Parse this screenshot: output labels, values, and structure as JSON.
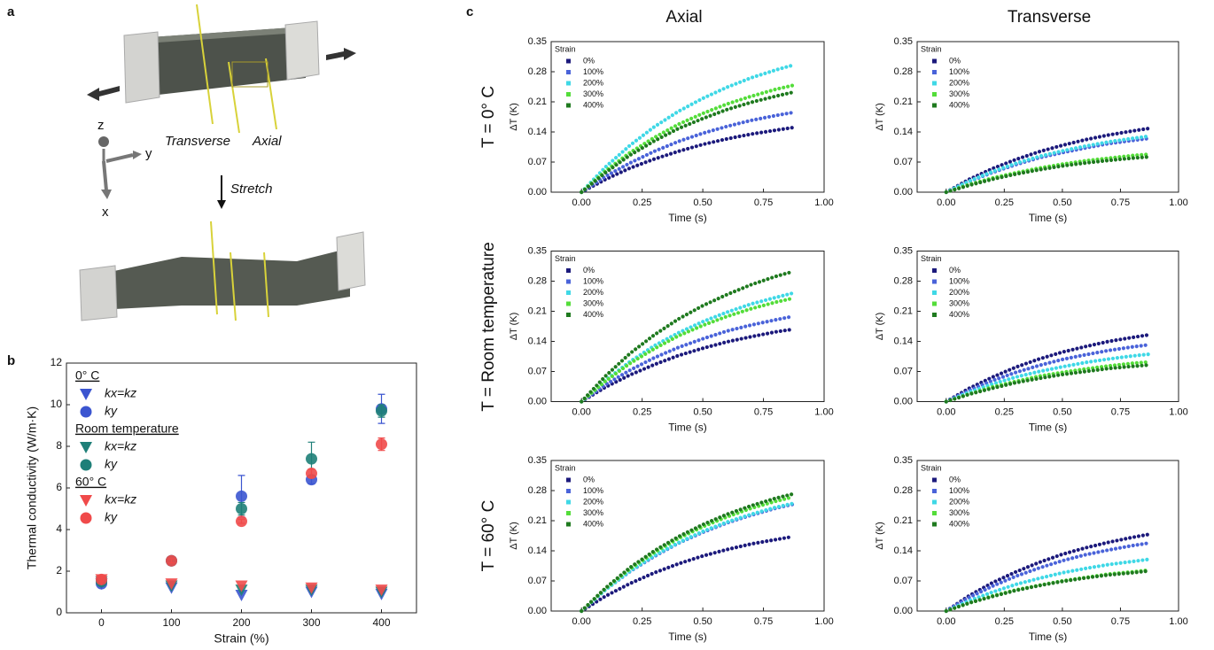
{
  "panel_labels": [
    "a",
    "b",
    "c"
  ],
  "panel_a": {
    "axes": [
      "z",
      "y",
      "x"
    ],
    "directions": [
      "Transverse",
      "Axial"
    ],
    "stretch": "Stretch"
  },
  "column_titles": [
    "Axial",
    "Transverse"
  ],
  "row_titles": [
    "T = 0° C",
    "T = Room temperature",
    "T = 60° C"
  ],
  "chart_data": [
    {
      "type": "scatter",
      "x_label": "Strain (%)",
      "y_label": "Thermal conductivity (W/m·K)",
      "x": [
        0,
        100,
        200,
        300,
        400
      ],
      "xlim": [
        -50,
        450
      ],
      "xticks": [
        0,
        100,
        200,
        300,
        400
      ],
      "ylim": [
        0,
        12
      ],
      "yticks": [
        0,
        2,
        4,
        6,
        8,
        10,
        12
      ],
      "groups": [
        {
          "name": "0° C",
          "color": "#3b55d0",
          "series": [
            {
              "name": "kx=kz",
              "marker": "triangle",
              "values": [
                1.4,
                1.2,
                0.85,
                1.0,
                0.9
              ]
            },
            {
              "name": "ky",
              "marker": "circle",
              "values": [
                1.4,
                2.5,
                5.6,
                6.4,
                9.8
              ],
              "errors": [
                0.1,
                0.1,
                1.0,
                0.2,
                0.7
              ]
            }
          ]
        },
        {
          "name": "Room temperature",
          "color": "#1e7f78",
          "series": [
            {
              "name": "kx=kz",
              "marker": "triangle",
              "values": [
                1.5,
                1.3,
                1.1,
                1.1,
                1.0
              ]
            },
            {
              "name": "ky",
              "marker": "circle",
              "values": [
                1.5,
                2.5,
                5.0,
                7.4,
                9.7
              ],
              "errors": [
                0.1,
                0.1,
                0.3,
                0.8,
                0.3
              ]
            }
          ]
        },
        {
          "name": "60° C",
          "color": "#f04a4a",
          "series": [
            {
              "name": "kx=kz",
              "marker": "triangle",
              "values": [
                1.6,
                1.4,
                1.3,
                1.2,
                1.1
              ]
            },
            {
              "name": "ky",
              "marker": "circle",
              "values": [
                1.6,
                2.5,
                4.4,
                6.7,
                8.1
              ],
              "errors": [
                0.1,
                0.1,
                0.1,
                0.2,
                0.3
              ]
            }
          ]
        }
      ]
    },
    {
      "type": "line",
      "x_label": "Time (s)",
      "y_label": "ΔT (K)",
      "legend_title": "Strain",
      "x": [
        0,
        0.1,
        0.2,
        0.3,
        0.4,
        0.5,
        0.6,
        0.7,
        0.8,
        0.87
      ],
      "xlim": [
        -0.125,
        1.0
      ],
      "xticks": [
        {
          "value": 0,
          "label": "0.00"
        },
        {
          "value": 0.25,
          "label": "0.25"
        },
        {
          "value": 0.5,
          "label": "0.50"
        },
        {
          "value": 0.75,
          "label": "0.75"
        },
        {
          "value": 1,
          "label": "1.00"
        }
      ],
      "ylim": [
        0,
        0.35
      ],
      "yticks": [
        {
          "value": 0,
          "label": "0.00"
        },
        {
          "value": 0.07,
          "label": "0.07"
        },
        {
          "value": 0.14,
          "label": "0.14"
        },
        {
          "value": 0.21,
          "label": "0.21"
        },
        {
          "value": 0.28,
          "label": "0.28"
        },
        {
          "value": 0.35,
          "label": "0.35"
        }
      ],
      "series": [
        {
          "name": "0%",
          "color": "#1c1a7c",
          "values": [
            0,
            0.03,
            0.056,
            0.077,
            0.095,
            0.111,
            0.124,
            0.135,
            0.144,
            0.15
          ]
        },
        {
          "name": "100%",
          "color": "#4a63d9",
          "values": [
            0,
            0.037,
            0.068,
            0.095,
            0.118,
            0.137,
            0.153,
            0.167,
            0.178,
            0.185
          ]
        },
        {
          "name": "200%",
          "color": "#3fd8e6",
          "values": [
            0,
            0.059,
            0.109,
            0.152,
            0.188,
            0.218,
            0.244,
            0.266,
            0.284,
            0.295
          ]
        },
        {
          "name": "300%",
          "color": "#54dd3a",
          "values": [
            0,
            0.05,
            0.092,
            0.127,
            0.158,
            0.183,
            0.205,
            0.223,
            0.239,
            0.248
          ]
        },
        {
          "name": "400%",
          "color": "#1f7a1f",
          "values": [
            0,
            0.046,
            0.086,
            0.119,
            0.148,
            0.171,
            0.192,
            0.209,
            0.223,
            0.232
          ]
        }
      ]
    },
    {
      "type": "line",
      "x_label": "Time (s)",
      "y_label": "ΔT (K)",
      "legend_title": "Strain",
      "x": [
        0,
        0.1,
        0.2,
        0.3,
        0.4,
        0.5,
        0.6,
        0.7,
        0.8,
        0.87
      ],
      "xlim": [
        -0.125,
        1.0
      ],
      "xticks": [
        {
          "value": 0,
          "label": "0.00"
        },
        {
          "value": 0.25,
          "label": "0.25"
        },
        {
          "value": 0.5,
          "label": "0.50"
        },
        {
          "value": 0.75,
          "label": "0.75"
        },
        {
          "value": 1,
          "label": "1.00"
        }
      ],
      "ylim": [
        0,
        0.35
      ],
      "yticks": [
        {
          "value": 0,
          "label": "0.00"
        },
        {
          "value": 0.07,
          "label": "0.07"
        },
        {
          "value": 0.14,
          "label": "0.14"
        },
        {
          "value": 0.21,
          "label": "0.21"
        },
        {
          "value": 0.28,
          "label": "0.28"
        },
        {
          "value": 0.35,
          "label": "0.35"
        }
      ],
      "series": [
        {
          "name": "0%",
          "color": "#1c1a7c",
          "values": [
            0,
            0.03,
            0.055,
            0.076,
            0.094,
            0.109,
            0.122,
            0.133,
            0.142,
            0.148
          ]
        },
        {
          "name": "100%",
          "color": "#4a63d9",
          "values": [
            0,
            0.025,
            0.046,
            0.064,
            0.08,
            0.092,
            0.103,
            0.113,
            0.12,
            0.125
          ]
        },
        {
          "name": "200%",
          "color": "#3fd8e6",
          "values": [
            0,
            0.026,
            0.048,
            0.067,
            0.083,
            0.096,
            0.107,
            0.117,
            0.125,
            0.13
          ]
        },
        {
          "name": "300%",
          "color": "#54dd3a",
          "values": [
            0,
            0.018,
            0.033,
            0.045,
            0.056,
            0.065,
            0.073,
            0.079,
            0.085,
            0.088
          ]
        },
        {
          "name": "400%",
          "color": "#1f7a1f",
          "values": [
            0,
            0.016,
            0.03,
            0.042,
            0.052,
            0.061,
            0.068,
            0.074,
            0.079,
            0.082
          ]
        }
      ]
    },
    {
      "type": "line",
      "x_label": "Time (s)",
      "y_label": "ΔT (K)",
      "legend_title": "Strain",
      "x": [
        0,
        0.1,
        0.2,
        0.3,
        0.4,
        0.5,
        0.6,
        0.7,
        0.8,
        0.87
      ],
      "xlim": [
        -0.125,
        1.0
      ],
      "xticks": [
        {
          "value": 0,
          "label": "0.00"
        },
        {
          "value": 0.25,
          "label": "0.25"
        },
        {
          "value": 0.5,
          "label": "0.50"
        },
        {
          "value": 0.75,
          "label": "0.75"
        },
        {
          "value": 1,
          "label": "1.00"
        }
      ],
      "ylim": [
        0,
        0.35
      ],
      "yticks": [
        {
          "value": 0,
          "label": "0.00"
        },
        {
          "value": 0.07,
          "label": "0.07"
        },
        {
          "value": 0.14,
          "label": "0.14"
        },
        {
          "value": 0.21,
          "label": "0.21"
        },
        {
          "value": 0.28,
          "label": "0.28"
        },
        {
          "value": 0.35,
          "label": "0.35"
        }
      ],
      "series": [
        {
          "name": "0%",
          "color": "#1c1a7c",
          "values": [
            0,
            0.034,
            0.062,
            0.086,
            0.107,
            0.124,
            0.139,
            0.151,
            0.162,
            0.168
          ]
        },
        {
          "name": "100%",
          "color": "#4a63d9",
          "values": [
            0,
            0.04,
            0.073,
            0.102,
            0.126,
            0.146,
            0.164,
            0.178,
            0.19,
            0.198
          ]
        },
        {
          "name": "200%",
          "color": "#3fd8e6",
          "values": [
            0,
            0.05,
            0.093,
            0.13,
            0.16,
            0.186,
            0.208,
            0.227,
            0.242,
            0.252
          ]
        },
        {
          "name": "300%",
          "color": "#54dd3a",
          "values": [
            0,
            0.048,
            0.089,
            0.123,
            0.153,
            0.177,
            0.198,
            0.216,
            0.231,
            0.24
          ]
        },
        {
          "name": "400%",
          "color": "#1f7a1f",
          "values": [
            0,
            0.06,
            0.112,
            0.155,
            0.192,
            0.223,
            0.249,
            0.272,
            0.291,
            0.302
          ]
        }
      ]
    },
    {
      "type": "line",
      "x_label": "Time (s)",
      "y_label": "ΔT (K)",
      "legend_title": "Strain",
      "x": [
        0,
        0.1,
        0.2,
        0.3,
        0.4,
        0.5,
        0.6,
        0.7,
        0.8,
        0.87
      ],
      "xlim": [
        -0.125,
        1.0
      ],
      "xticks": [
        {
          "value": 0,
          "label": "0.00"
        },
        {
          "value": 0.25,
          "label": "0.25"
        },
        {
          "value": 0.5,
          "label": "0.50"
        },
        {
          "value": 0.75,
          "label": "0.75"
        },
        {
          "value": 1,
          "label": "1.00"
        }
      ],
      "ylim": [
        0,
        0.35
      ],
      "yticks": [
        {
          "value": 0,
          "label": "0.00"
        },
        {
          "value": 0.07,
          "label": "0.07"
        },
        {
          "value": 0.14,
          "label": "0.14"
        },
        {
          "value": 0.21,
          "label": "0.21"
        },
        {
          "value": 0.28,
          "label": "0.28"
        },
        {
          "value": 0.35,
          "label": "0.35"
        }
      ],
      "series": [
        {
          "name": "0%",
          "color": "#1c1a7c",
          "values": [
            0,
            0.031,
            0.057,
            0.08,
            0.099,
            0.115,
            0.128,
            0.14,
            0.149,
            0.155
          ]
        },
        {
          "name": "100%",
          "color": "#4a63d9",
          "values": [
            0,
            0.026,
            0.049,
            0.068,
            0.084,
            0.098,
            0.109,
            0.119,
            0.127,
            0.132
          ]
        },
        {
          "name": "200%",
          "color": "#3fd8e6",
          "values": [
            0,
            0.022,
            0.041,
            0.057,
            0.07,
            0.081,
            0.091,
            0.099,
            0.106,
            0.11
          ]
        },
        {
          "name": "300%",
          "color": "#54dd3a",
          "values": [
            0,
            0.018,
            0.034,
            0.047,
            0.059,
            0.068,
            0.076,
            0.083,
            0.089,
            0.092
          ]
        },
        {
          "name": "400%",
          "color": "#1f7a1f",
          "values": [
            0,
            0.017,
            0.031,
            0.044,
            0.054,
            0.063,
            0.07,
            0.077,
            0.082,
            0.085
          ]
        }
      ]
    },
    {
      "type": "line",
      "x_label": "Time (s)",
      "y_label": "ΔT (K)",
      "legend_title": "Strain",
      "x": [
        0,
        0.1,
        0.2,
        0.3,
        0.4,
        0.5,
        0.6,
        0.7,
        0.8,
        0.87
      ],
      "xlim": [
        -0.125,
        1.0
      ],
      "xticks": [
        {
          "value": 0,
          "label": "0.00"
        },
        {
          "value": 0.25,
          "label": "0.25"
        },
        {
          "value": 0.5,
          "label": "0.50"
        },
        {
          "value": 0.75,
          "label": "0.75"
        },
        {
          "value": 1,
          "label": "1.00"
        }
      ],
      "ylim": [
        0,
        0.35
      ],
      "yticks": [
        {
          "value": 0,
          "label": "0.00"
        },
        {
          "value": 0.07,
          "label": "0.07"
        },
        {
          "value": 0.14,
          "label": "0.14"
        },
        {
          "value": 0.21,
          "label": "0.21"
        },
        {
          "value": 0.28,
          "label": "0.28"
        },
        {
          "value": 0.35,
          "label": "0.35"
        }
      ],
      "series": [
        {
          "name": "0%",
          "color": "#1c1a7c",
          "values": [
            0,
            0.035,
            0.064,
            0.089,
            0.11,
            0.128,
            0.143,
            0.156,
            0.166,
            0.173
          ]
        },
        {
          "name": "100%",
          "color": "#4a63d9",
          "values": [
            0,
            0.05,
            0.092,
            0.127,
            0.158,
            0.183,
            0.205,
            0.223,
            0.239,
            0.248
          ]
        },
        {
          "name": "200%",
          "color": "#3fd8e6",
          "values": [
            0,
            0.05,
            0.093,
            0.129,
            0.159,
            0.185,
            0.207,
            0.225,
            0.241,
            0.25
          ]
        },
        {
          "name": "300%",
          "color": "#54dd3a",
          "values": [
            0,
            0.053,
            0.098,
            0.136,
            0.169,
            0.196,
            0.219,
            0.239,
            0.255,
            0.265
          ]
        },
        {
          "name": "400%",
          "color": "#1f7a1f",
          "values": [
            0,
            0.054,
            0.101,
            0.14,
            0.173,
            0.201,
            0.225,
            0.245,
            0.262,
            0.272
          ]
        }
      ]
    },
    {
      "type": "line",
      "x_label": "Time (s)",
      "y_label": "ΔT (K)",
      "legend_title": "Strain",
      "x": [
        0,
        0.1,
        0.2,
        0.3,
        0.4,
        0.5,
        0.6,
        0.7,
        0.8,
        0.87
      ],
      "xlim": [
        -0.125,
        1.0
      ],
      "xticks": [
        {
          "value": 0,
          "label": "0.00"
        },
        {
          "value": 0.25,
          "label": "0.25"
        },
        {
          "value": 0.5,
          "label": "0.50"
        },
        {
          "value": 0.75,
          "label": "0.75"
        },
        {
          "value": 1,
          "label": "1.00"
        }
      ],
      "ylim": [
        0,
        0.35
      ],
      "yticks": [
        {
          "value": 0,
          "label": "0.00"
        },
        {
          "value": 0.07,
          "label": "0.07"
        },
        {
          "value": 0.14,
          "label": "0.14"
        },
        {
          "value": 0.21,
          "label": "0.21"
        },
        {
          "value": 0.28,
          "label": "0.28"
        },
        {
          "value": 0.35,
          "label": "0.35"
        }
      ],
      "series": [
        {
          "name": "0%",
          "color": "#1c1a7c",
          "values": [
            0,
            0.036,
            0.066,
            0.091,
            0.113,
            0.132,
            0.147,
            0.16,
            0.171,
            0.178
          ]
        },
        {
          "name": "100%",
          "color": "#4a63d9",
          "values": [
            0,
            0.032,
            0.058,
            0.081,
            0.1,
            0.117,
            0.131,
            0.142,
            0.152,
            0.158
          ]
        },
        {
          "name": "200%",
          "color": "#3fd8e6",
          "values": [
            0,
            0.024,
            0.044,
            0.062,
            0.076,
            0.089,
            0.099,
            0.108,
            0.115,
            0.12
          ]
        },
        {
          "name": "300%",
          "color": "#54dd3a",
          "values": [
            0,
            0.019,
            0.035,
            0.049,
            0.06,
            0.07,
            0.078,
            0.086,
            0.091,
            0.095
          ]
        },
        {
          "name": "400%",
          "color": "#1f7a1f",
          "values": [
            0,
            0.019,
            0.034,
            0.048,
            0.059,
            0.069,
            0.077,
            0.084,
            0.089,
            0.093
          ]
        }
      ]
    }
  ]
}
